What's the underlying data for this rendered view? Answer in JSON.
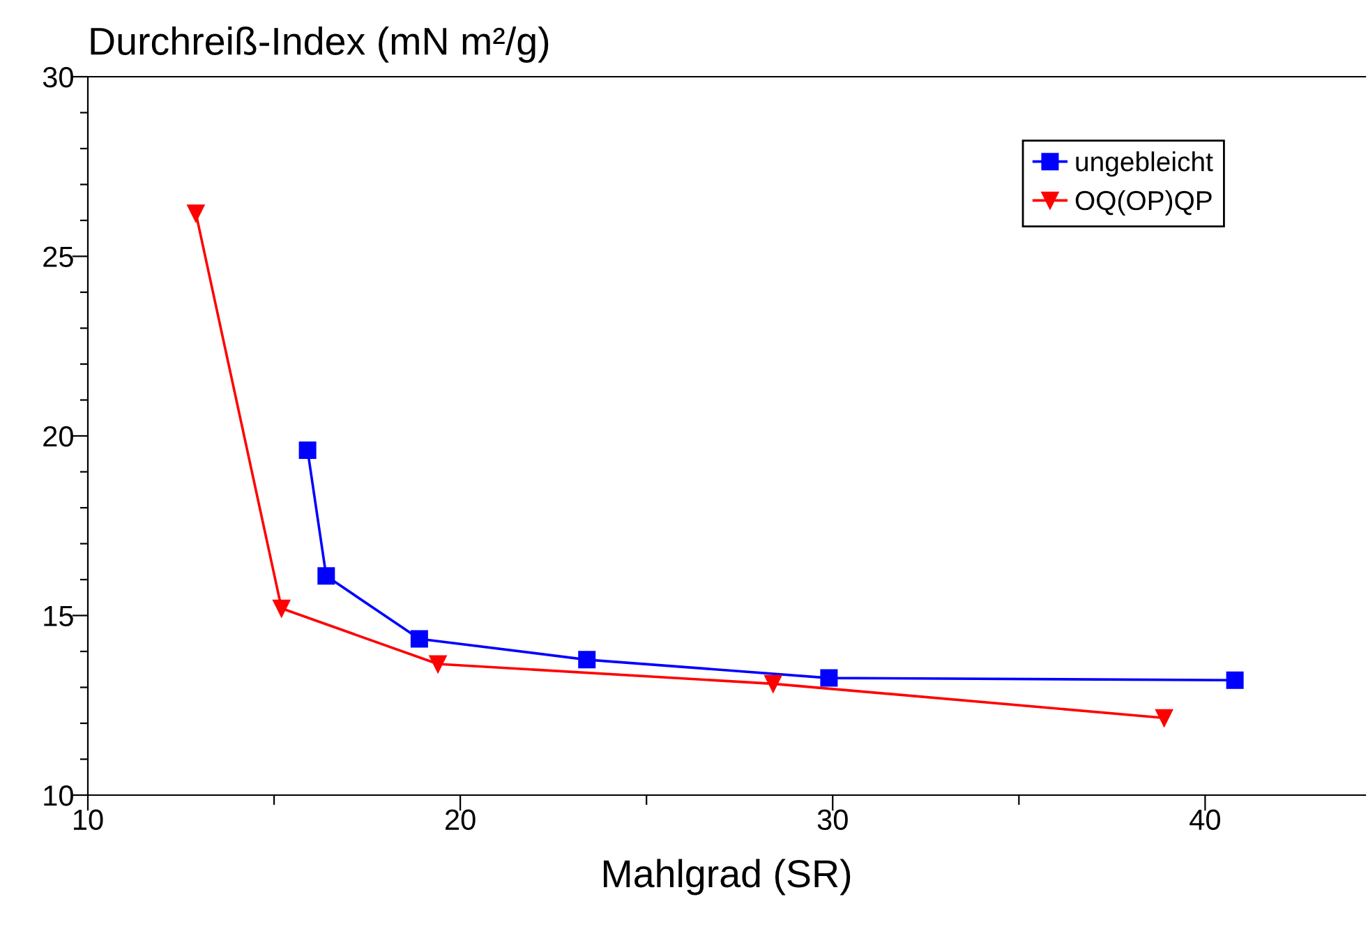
{
  "chart_data": {
    "type": "line",
    "ylabel": "Durchreiß-Index (mN m²/g)",
    "xlabel": "Mahlgrad (SR)",
    "xlim": [
      10,
      44.3
    ],
    "ylim": [
      10,
      30
    ],
    "xticks": [
      10,
      {
        "value": 15,
        "label": null
      },
      20,
      {
        "value": 25,
        "label": null
      },
      30,
      {
        "value": 35,
        "label": null
      },
      40
    ],
    "yticks": [
      10,
      {
        "value": 11,
        "label": null
      },
      {
        "value": 12,
        "label": null
      },
      {
        "value": 13,
        "label": null
      },
      {
        "value": 14,
        "label": null
      },
      15,
      {
        "value": 16,
        "label": null
      },
      {
        "value": 17,
        "label": null
      },
      {
        "value": 18,
        "label": null
      },
      {
        "value": 19,
        "label": null
      },
      20,
      {
        "value": 21,
        "label": null
      },
      {
        "value": 22,
        "label": null
      },
      {
        "value": 23,
        "label": null
      },
      {
        "value": 24,
        "label": null
      },
      25,
      {
        "value": 26,
        "label": null
      },
      {
        "value": 27,
        "label": null
      },
      {
        "value": 28,
        "label": null
      },
      {
        "value": 29,
        "label": null
      },
      30
    ],
    "grid": false,
    "legend": "top right",
    "series": [
      {
        "name": "ungebleicht",
        "color": "#0000ff",
        "marker": "square",
        "x": [
          15.9,
          16.4,
          18.9,
          23.4,
          29.9,
          40.8
        ],
        "values": [
          19.6,
          16.1,
          14.35,
          13.77,
          13.26,
          13.2
        ]
      },
      {
        "name": "OQ(OP)QP",
        "color": "#ff0000",
        "marker": "triangle",
        "x": [
          12.9,
          15.2,
          19.4,
          28.4,
          38.9
        ],
        "values": [
          26.2,
          15.2,
          13.65,
          13.1,
          12.15
        ]
      }
    ]
  }
}
